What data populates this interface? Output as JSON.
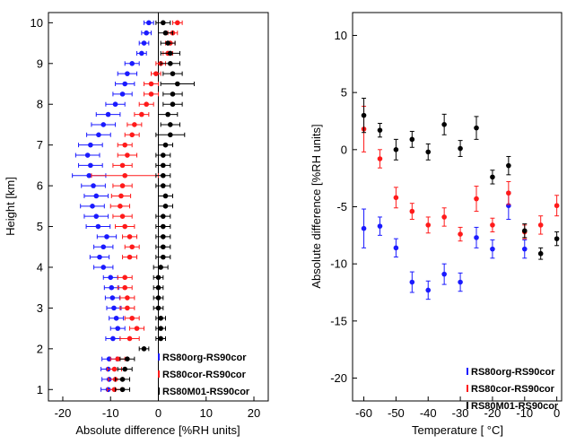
{
  "chart_data": [
    {
      "type": "scatter",
      "title": "",
      "xlabel": "Absolute difference [%RH units]",
      "ylabel": "Height [km]",
      "xlim": [
        -23,
        23
      ],
      "ylim": [
        0.72,
        10.25
      ],
      "xticks": [
        -20,
        -10,
        0,
        10,
        20
      ],
      "yticks": [
        1,
        2,
        3,
        4,
        5,
        6,
        7,
        8,
        9,
        10
      ],
      "zero_line": true,
      "legend_position": "bottom-right",
      "series": [
        {
          "name": "RS80org-RS90cor",
          "color": "#1a1aff",
          "points": [
            {
              "x": -10.5,
              "y": 1.0,
              "e": 1.5
            },
            {
              "x": -10.3,
              "y": 1.25,
              "e": 1.5
            },
            {
              "x": -10.5,
              "y": 1.5,
              "e": 1.5
            },
            {
              "x": -10.3,
              "y": 1.75,
              "e": 1.5
            },
            {
              "x": -9.5,
              "y": 2.25,
              "e": 1.5
            },
            {
              "x": -8.5,
              "y": 2.5,
              "e": 1.5
            },
            {
              "x": -8.8,
              "y": 2.75,
              "e": 1.5
            },
            {
              "x": -9.3,
              "y": 3.0,
              "e": 1.5
            },
            {
              "x": -9.6,
              "y": 3.25,
              "e": 1.5
            },
            {
              "x": -9.8,
              "y": 3.5,
              "e": 1.5
            },
            {
              "x": -10.0,
              "y": 3.75,
              "e": 1.5
            },
            {
              "x": -11.5,
              "y": 4.0,
              "e": 2.0
            },
            {
              "x": -12.3,
              "y": 4.25,
              "e": 2.0
            },
            {
              "x": -11.5,
              "y": 4.5,
              "e": 2.0
            },
            {
              "x": -10.8,
              "y": 4.75,
              "e": 2.0
            },
            {
              "x": -12.6,
              "y": 5.0,
              "e": 2.5
            },
            {
              "x": -13.0,
              "y": 5.25,
              "e": 2.5
            },
            {
              "x": -13.8,
              "y": 5.5,
              "e": 2.5
            },
            {
              "x": -13.0,
              "y": 5.75,
              "e": 2.5
            },
            {
              "x": -13.6,
              "y": 6.0,
              "e": 2.5
            },
            {
              "x": -14.5,
              "y": 6.25,
              "e": 3.5
            },
            {
              "x": -14.2,
              "y": 6.5,
              "e": 2.5
            },
            {
              "x": -14.8,
              "y": 6.75,
              "e": 2.5
            },
            {
              "x": -14.2,
              "y": 7.0,
              "e": 2.5
            },
            {
              "x": -12.5,
              "y": 7.25,
              "e": 2.5
            },
            {
              "x": -11.5,
              "y": 7.5,
              "e": 2.5
            },
            {
              "x": -10.5,
              "y": 7.75,
              "e": 2.5
            },
            {
              "x": -9.0,
              "y": 8.0,
              "e": 2.0
            },
            {
              "x": -7.5,
              "y": 8.25,
              "e": 2.0
            },
            {
              "x": -7.0,
              "y": 8.5,
              "e": 2.0
            },
            {
              "x": -6.5,
              "y": 8.75,
              "e": 2.0
            },
            {
              "x": -5.5,
              "y": 9.0,
              "e": 1.5
            },
            {
              "x": -3.5,
              "y": 9.25,
              "e": 1.0
            },
            {
              "x": -3.0,
              "y": 9.5,
              "e": 1.0
            },
            {
              "x": -2.5,
              "y": 9.75,
              "e": 1.0
            },
            {
              "x": -2.0,
              "y": 10.0,
              "e": 1.0
            }
          ]
        },
        {
          "name": "RS80cor-RS90cor",
          "color": "#ff1a1a",
          "points": [
            {
              "x": -9.2,
              "y": 1.0,
              "e": 1.5
            },
            {
              "x": -9.0,
              "y": 1.25,
              "e": 1.5
            },
            {
              "x": -9.2,
              "y": 1.5,
              "e": 1.5
            },
            {
              "x": -8.5,
              "y": 1.75,
              "e": 1.5
            },
            {
              "x": -6.0,
              "y": 2.25,
              "e": 2.0
            },
            {
              "x": -4.5,
              "y": 2.5,
              "e": 1.5
            },
            {
              "x": -5.5,
              "y": 2.75,
              "e": 1.5
            },
            {
              "x": -6.5,
              "y": 3.0,
              "e": 1.5
            },
            {
              "x": -6.5,
              "y": 3.25,
              "e": 1.5
            },
            {
              "x": -7.0,
              "y": 3.5,
              "e": 1.5
            },
            {
              "x": -7.0,
              "y": 3.75,
              "e": 1.5
            },
            {
              "x": -6.0,
              "y": 4.25,
              "e": 1.5
            },
            {
              "x": -5.5,
              "y": 4.5,
              "e": 1.5
            },
            {
              "x": -6.0,
              "y": 4.75,
              "e": 1.5
            },
            {
              "x": -7.0,
              "y": 5.0,
              "e": 2.0
            },
            {
              "x": -7.5,
              "y": 5.25,
              "e": 2.0
            },
            {
              "x": -8.0,
              "y": 5.5,
              "e": 2.0
            },
            {
              "x": -7.8,
              "y": 5.75,
              "e": 2.0
            },
            {
              "x": -7.5,
              "y": 6.0,
              "e": 2.0
            },
            {
              "x": -7.0,
              "y": 6.25,
              "e": 7.0
            },
            {
              "x": -7.5,
              "y": 6.5,
              "e": 2.0
            },
            {
              "x": -6.5,
              "y": 6.75,
              "e": 2.0
            },
            {
              "x": -7.0,
              "y": 7.0,
              "e": 1.5
            },
            {
              "x": -5.5,
              "y": 7.25,
              "e": 1.5
            },
            {
              "x": -5.0,
              "y": 7.5,
              "e": 1.5
            },
            {
              "x": -3.5,
              "y": 7.75,
              "e": 1.5
            },
            {
              "x": -2.5,
              "y": 8.0,
              "e": 1.5
            },
            {
              "x": -1.5,
              "y": 8.25,
              "e": 1.5
            },
            {
              "x": -1.5,
              "y": 8.5,
              "e": 1.5
            },
            {
              "x": -0.5,
              "y": 8.75,
              "e": 1.0
            },
            {
              "x": 0.5,
              "y": 9.0,
              "e": 1.0
            },
            {
              "x": 2.0,
              "y": 9.25,
              "e": 1.0
            },
            {
              "x": 2.5,
              "y": 9.5,
              "e": 1.0
            },
            {
              "x": 3.0,
              "y": 9.75,
              "e": 1.0
            },
            {
              "x": 4.0,
              "y": 10.0,
              "e": 1.0
            }
          ]
        },
        {
          "name": "RS80M01-RS90cor",
          "color": "#000000",
          "points": [
            {
              "x": -7.5,
              "y": 1.0,
              "e": 1.5
            },
            {
              "x": -7.5,
              "y": 1.25,
              "e": 1.5
            },
            {
              "x": -7.0,
              "y": 1.5,
              "e": 1.5
            },
            {
              "x": -6.5,
              "y": 1.75,
              "e": 1.5
            },
            {
              "x": -3.0,
              "y": 2.0,
              "e": 1.0
            },
            {
              "x": 0.5,
              "y": 2.25,
              "e": 1.0
            },
            {
              "x": 0.5,
              "y": 2.5,
              "e": 1.0
            },
            {
              "x": 0.5,
              "y": 2.75,
              "e": 1.0
            },
            {
              "x": 0.0,
              "y": 3.0,
              "e": 1.0
            },
            {
              "x": 0.0,
              "y": 3.25,
              "e": 1.0
            },
            {
              "x": 0.0,
              "y": 3.5,
              "e": 1.0
            },
            {
              "x": 0.0,
              "y": 3.75,
              "e": 1.0
            },
            {
              "x": 0.5,
              "y": 4.0,
              "e": 1.5
            },
            {
              "x": 1.0,
              "y": 4.25,
              "e": 1.5
            },
            {
              "x": 1.0,
              "y": 4.5,
              "e": 1.5
            },
            {
              "x": 1.0,
              "y": 4.75,
              "e": 1.5
            },
            {
              "x": 1.0,
              "y": 5.0,
              "e": 1.5
            },
            {
              "x": 1.0,
              "y": 5.25,
              "e": 1.5
            },
            {
              "x": 1.5,
              "y": 5.5,
              "e": 1.5
            },
            {
              "x": 1.5,
              "y": 5.75,
              "e": 1.5
            },
            {
              "x": 1.0,
              "y": 6.0,
              "e": 1.5
            },
            {
              "x": 1.0,
              "y": 6.25,
              "e": 1.5
            },
            {
              "x": 1.0,
              "y": 6.5,
              "e": 1.5
            },
            {
              "x": 1.0,
              "y": 6.75,
              "e": 1.5
            },
            {
              "x": 1.5,
              "y": 7.0,
              "e": 1.5
            },
            {
              "x": 2.5,
              "y": 7.25,
              "e": 3.0
            },
            {
              "x": 2.5,
              "y": 7.5,
              "e": 2.0
            },
            {
              "x": 2.0,
              "y": 7.75,
              "e": 2.0
            },
            {
              "x": 3.0,
              "y": 8.0,
              "e": 2.0
            },
            {
              "x": 3.0,
              "y": 8.25,
              "e": 2.0
            },
            {
              "x": 4.0,
              "y": 8.5,
              "e": 3.5
            },
            {
              "x": 3.0,
              "y": 8.75,
              "e": 2.0
            },
            {
              "x": 2.5,
              "y": 9.0,
              "e": 2.0
            },
            {
              "x": 2.5,
              "y": 9.25,
              "e": 2.0
            },
            {
              "x": 2.0,
              "y": 9.5,
              "e": 1.5
            },
            {
              "x": 1.5,
              "y": 9.75,
              "e": 1.5
            },
            {
              "x": 1.0,
              "y": 10.0,
              "e": 1.5
            }
          ]
        }
      ]
    },
    {
      "type": "scatter",
      "title": "",
      "xlabel": "Temperature [ °C]",
      "ylabel": "Absolute difference [%RH units]",
      "xlim": [
        -63.5,
        1.5
      ],
      "ylim": [
        -22,
        12
      ],
      "xticks": [
        -60,
        -50,
        -40,
        -30,
        -20,
        -10,
        0
      ],
      "yticks": [
        -20,
        -15,
        -10,
        -5,
        0,
        5,
        10
      ],
      "legend_position": "bottom-right",
      "series": [
        {
          "name": "RS80org-RS90cor",
          "color": "#1a1aff",
          "points": [
            {
              "x": -60,
              "y": -6.9,
              "e": 1.7
            },
            {
              "x": -55,
              "y": -6.7,
              "e": 0.8
            },
            {
              "x": -50,
              "y": -8.6,
              "e": 0.8
            },
            {
              "x": -45,
              "y": -11.6,
              "e": 0.9
            },
            {
              "x": -40,
              "y": -12.3,
              "e": 0.8
            },
            {
              "x": -35,
              "y": -10.9,
              "e": 0.9
            },
            {
              "x": -30,
              "y": -11.6,
              "e": 0.8
            },
            {
              "x": -25,
              "y": -7.7,
              "e": 0.9
            },
            {
              "x": -20,
              "y": -8.7,
              "e": 0.8
            },
            {
              "x": -15,
              "y": -4.9,
              "e": 1.2
            },
            {
              "x": -10,
              "y": -8.7,
              "e": 0.8
            }
          ]
        },
        {
          "name": "RS80cor-RS90cor",
          "color": "#ff1a1a",
          "points": [
            {
              "x": -60,
              "y": 1.8,
              "e": 2.0
            },
            {
              "x": -55,
              "y": -0.8,
              "e": 0.8
            },
            {
              "x": -50,
              "y": -4.2,
              "e": 0.9
            },
            {
              "x": -45,
              "y": -5.4,
              "e": 0.7
            },
            {
              "x": -40,
              "y": -6.6,
              "e": 0.7
            },
            {
              "x": -35,
              "y": -5.9,
              "e": 0.8
            },
            {
              "x": -30,
              "y": -7.4,
              "e": 0.6
            },
            {
              "x": -25,
              "y": -4.3,
              "e": 1.1
            },
            {
              "x": -20,
              "y": -6.6,
              "e": 0.6
            },
            {
              "x": -15,
              "y": -3.8,
              "e": 1.0
            },
            {
              "x": -10,
              "y": -7.2,
              "e": 0.6
            },
            {
              "x": -5,
              "y": -6.6,
              "e": 0.8
            },
            {
              "x": 0,
              "y": -4.9,
              "e": 0.9
            }
          ]
        },
        {
          "name": "RS80M01-RS90cor",
          "color": "#000000",
          "points": [
            {
              "x": -60,
              "y": 3.0,
              "e": 1.5
            },
            {
              "x": -55,
              "y": 1.7,
              "e": 0.6
            },
            {
              "x": -50,
              "y": 0.0,
              "e": 0.9
            },
            {
              "x": -45,
              "y": 0.9,
              "e": 0.7
            },
            {
              "x": -40,
              "y": -0.2,
              "e": 0.7
            },
            {
              "x": -35,
              "y": 2.2,
              "e": 0.9
            },
            {
              "x": -30,
              "y": 0.1,
              "e": 0.7
            },
            {
              "x": -25,
              "y": 1.9,
              "e": 1.0
            },
            {
              "x": -20,
              "y": -2.4,
              "e": 0.6
            },
            {
              "x": -15,
              "y": -1.4,
              "e": 0.8
            },
            {
              "x": -10,
              "y": -7.1,
              "e": 0.6
            },
            {
              "x": -5,
              "y": -9.1,
              "e": 0.5
            },
            {
              "x": 0,
              "y": -7.8,
              "e": 0.6
            }
          ]
        }
      ]
    }
  ]
}
